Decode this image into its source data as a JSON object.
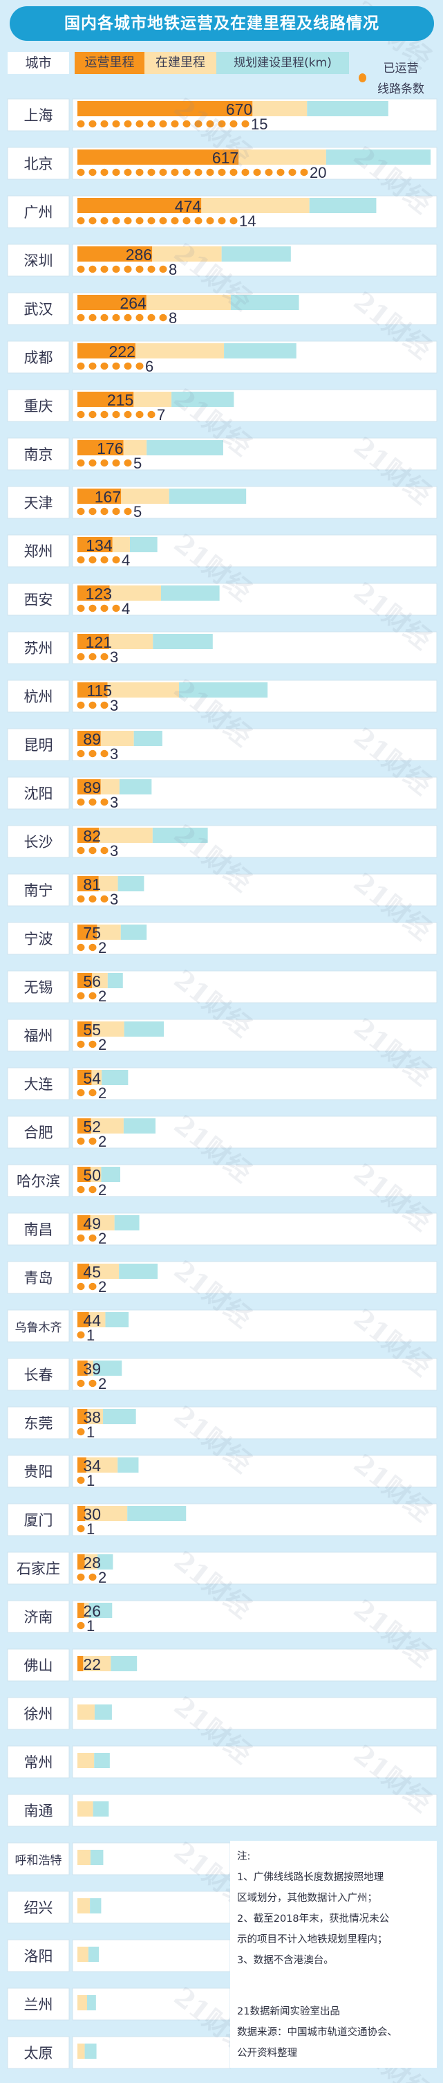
{
  "title": "国内各城市地铁运营及在建里程及线路情况",
  "legend": {
    "city": "城市",
    "operating": "运营里程",
    "construction": "在建里程",
    "planned": "规划建设里程(km)",
    "lines": "已运营",
    "lines2": "线路条数"
  },
  "watermark": "21财经",
  "colors": {
    "title_bg": "#1c9fd3",
    "operating": "#f7941d",
    "construction": "#fde1ab",
    "planned": "#afe4e8",
    "dot": "#f7941d",
    "background": "#d5edf9"
  },
  "chart_data": {
    "type": "bar",
    "orientation": "horizontal",
    "stacked": true,
    "title": "国内各城市地铁运营及在建里程及线路情况",
    "unit": "km",
    "categories": [
      "上海",
      "北京",
      "广州",
      "深圳",
      "武汉",
      "成都",
      "重庆",
      "南京",
      "天津",
      "郑州",
      "西安",
      "苏州",
      "杭州",
      "昆明",
      "沈阳",
      "长沙",
      "南宁",
      "宁波",
      "无锡",
      "福州",
      "大连",
      "合肥",
      "哈尔滨",
      "南昌",
      "青岛",
      "乌鲁木齐",
      "长春",
      "东莞",
      "贵阳",
      "厦门",
      "石家庄",
      "济南",
      "佛山",
      "徐州",
      "常州",
      "南通",
      "呼和浩特",
      "绍兴",
      "洛阳",
      "兰州",
      "太原"
    ],
    "series": [
      {
        "name": "运营里程",
        "values": [
          670,
          617,
          474,
          286,
          264,
          222,
          215,
          176,
          167,
          134,
          123,
          121,
          115,
          89,
          89,
          82,
          81,
          75,
          56,
          55,
          54,
          52,
          50,
          49,
          45,
          44,
          39,
          38,
          34,
          30,
          28,
          26,
          22,
          0,
          0,
          0,
          0,
          0,
          0,
          0,
          0
        ]
      },
      {
        "name": "在建里程",
        "values": [
          209,
          335,
          414,
          266,
          323,
          339,
          145,
          89,
          184,
          67,
          197,
          168,
          274,
          127,
          72,
          206,
          74,
          91,
          60,
          124,
          39,
          125,
          41,
          93,
          114,
          63,
          22,
          60,
          120,
          161,
          49,
          18,
          106,
          66,
          64,
          60,
          50,
          48,
          42,
          37,
          28
        ]
      },
      {
        "name": "规划建设里程(km)",
        "values": [
          311,
          400,
          256,
          265,
          261,
          277,
          239,
          293,
          295,
          105,
          224,
          229,
          339,
          109,
          123,
          211,
          100,
          99,
          58,
          152,
          101,
          122,
          73,
          95,
          148,
          89,
          109,
          126,
          80,
          225,
          59,
          89,
          100,
          66,
          60,
          60,
          49,
          43,
          40,
          34,
          45
        ]
      }
    ],
    "lines": {
      "name": "已运营线路条数",
      "values": [
        15,
        20,
        14,
        8,
        8,
        6,
        7,
        5,
        5,
        4,
        4,
        3,
        3,
        3,
        3,
        3,
        3,
        2,
        2,
        2,
        2,
        2,
        2,
        2,
        2,
        1,
        2,
        1,
        1,
        1,
        2,
        1,
        null,
        null,
        null,
        null,
        null,
        null,
        null,
        null,
        null
      ]
    },
    "labels_shown": "operating values"
  },
  "notes": {
    "heading": "注:",
    "lines": [
      "1、广佛线线路长度数据按照地理",
      "区域划分，其他数据计入广州；",
      "2、截至2018年末，获批情况未公",
      "示的项目不计入地铁规划里程内；",
      "3、数据不含港澳台。"
    ],
    "credit": "21数据新闻实验室出品",
    "source": "数据来源：中国城市轨道交通协会、",
    "source2": "公开资料整理"
  }
}
